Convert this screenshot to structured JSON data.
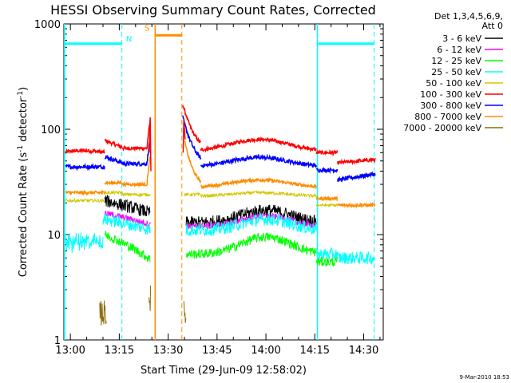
{
  "chart_data": {
    "type": "line",
    "title": "HESSI Observing Summary Count Rates, Corrected",
    "xlabel": "Start Time (29-Jun-09 12:58:02)",
    "ylabel_main": "Corrected Count Rate (s",
    "ylabel_sup1": "-1",
    "ylabel_mid": " detector",
    "ylabel_sup2": "-1",
    "ylabel_end": ")",
    "x_ticks": [
      {
        "t": 2,
        "label": "13:00"
      },
      {
        "t": 17,
        "label": "13:15"
      },
      {
        "t": 32,
        "label": "13:30"
      },
      {
        "t": 47,
        "label": "13:45"
      },
      {
        "t": 62,
        "label": "14:00"
      },
      {
        "t": 77,
        "label": "14:15"
      },
      {
        "t": 92,
        "label": "14:30"
      }
    ],
    "xlim_minutes_after_1258": [
      0,
      98
    ],
    "ylim": [
      1,
      1000
    ],
    "y_scale": "log",
    "y_ticks": [
      {
        "v": 1,
        "label": "1"
      },
      {
        "v": 10,
        "label": "10"
      },
      {
        "v": 100,
        "label": "100"
      },
      {
        "v": 1000,
        "label": "1000"
      }
    ],
    "legend_header1": "Det 1,3,4,5,6,9,",
    "legend_header2": "Att 0",
    "legend_position": "right",
    "series": [
      {
        "name": "3 - 6 keV",
        "color": "#000000"
      },
      {
        "name": "6 - 12 keV",
        "color": "#ff00ff"
      },
      {
        "name": "12 - 25 keV",
        "color": "#00ff00"
      },
      {
        "name": "25 - 50 keV",
        "color": "#00ffff"
      },
      {
        "name": "50 - 100 keV",
        "color": "#d2c800"
      },
      {
        "name": "100 - 300 keV",
        "color": "#ff0000"
      },
      {
        "name": "300 - 800 keV",
        "color": "#0000ff"
      },
      {
        "name": "800 - 7000 keV",
        "color": "#ff8c00"
      },
      {
        "name": "7000 - 20000 keV",
        "color": "#8b6b00"
      }
    ],
    "flags": [
      {
        "label": "N",
        "color": "#00ffff"
      },
      {
        "label": "S",
        "color": "#ff8c00"
      }
    ],
    "timestamp": "9-Mar-2010 18:53"
  }
}
